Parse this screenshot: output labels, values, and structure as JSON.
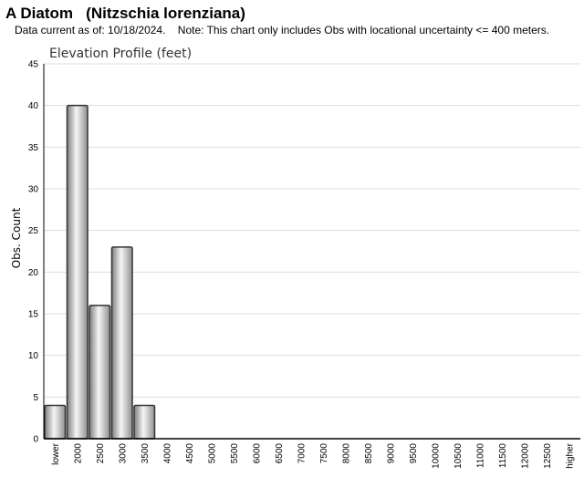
{
  "header": {
    "title": "A Diatom   (Nitzschia lorenziana)",
    "subtitle": "Data current as of: 10/18/2024.    Note: This chart only includes Obs with locational uncertainty <= 400 meters."
  },
  "chart_data": {
    "type": "bar",
    "title": "Elevation Profile (feet)",
    "xlabel": "",
    "ylabel": "Obs. Count",
    "ylim": [
      0,
      45
    ],
    "yticks": [
      0,
      5,
      10,
      15,
      20,
      25,
      30,
      35,
      40,
      45
    ],
    "grid": true,
    "categories": [
      "lower",
      "2000",
      "2500",
      "3000",
      "3500",
      "4000",
      "4500",
      "5000",
      "5500",
      "6000",
      "6500",
      "7000",
      "7500",
      "8000",
      "8500",
      "9000",
      "9500",
      "10000",
      "10500",
      "11000",
      "11500",
      "12000",
      "12500",
      "higher"
    ],
    "values": [
      4,
      40,
      16,
      23,
      4,
      0,
      0,
      0,
      0,
      0,
      0,
      0,
      0,
      0,
      0,
      0,
      0,
      0,
      0,
      0,
      0,
      0,
      0,
      0
    ],
    "colors": {
      "bar_light": "#f4f4f4",
      "bar_dark": "#8a8a8a",
      "bar_stroke": "#333333",
      "grid": "#dddddd"
    }
  }
}
